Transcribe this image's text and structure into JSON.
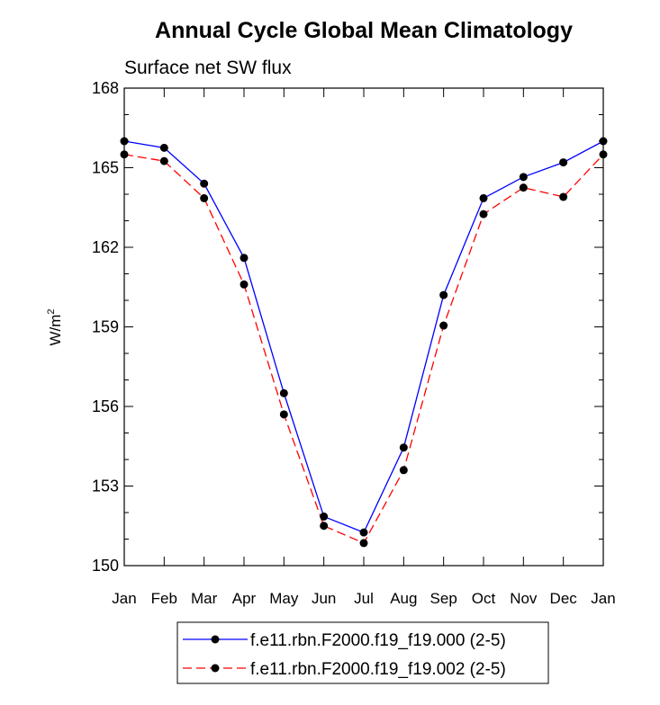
{
  "chart_data": {
    "type": "line",
    "title": "Annual Cycle Global Mean Climatology",
    "subtitle": "Surface net SW flux",
    "xlabel": "",
    "ylabel": "W/m",
    "ylabel_superscript": "2",
    "categories": [
      "Jan",
      "Feb",
      "Mar",
      "Apr",
      "May",
      "Jun",
      "Jul",
      "Aug",
      "Sep",
      "Oct",
      "Nov",
      "Dec",
      "Jan"
    ],
    "ylim": [
      150,
      168
    ],
    "yticks": [
      150,
      153,
      156,
      159,
      162,
      165,
      168
    ],
    "series": [
      {
        "name": "f.e11.rbn.F2000.f19_f19.000 (2-5)",
        "color": "#0000ff",
        "line_style": "solid",
        "values": [
          166.0,
          165.75,
          164.4,
          161.6,
          156.5,
          151.85,
          151.25,
          154.45,
          160.2,
          163.85,
          164.65,
          165.2,
          166.0
        ]
      },
      {
        "name": "f.e11.rbn.F2000.f19_f19.002 (2-5)",
        "color": "#ff0000",
        "line_style": "dashed",
        "values": [
          165.5,
          165.25,
          163.85,
          160.6,
          155.7,
          151.5,
          150.85,
          153.6,
          159.05,
          163.25,
          164.25,
          163.9,
          165.5
        ]
      }
    ],
    "legend_position": "bottom"
  }
}
